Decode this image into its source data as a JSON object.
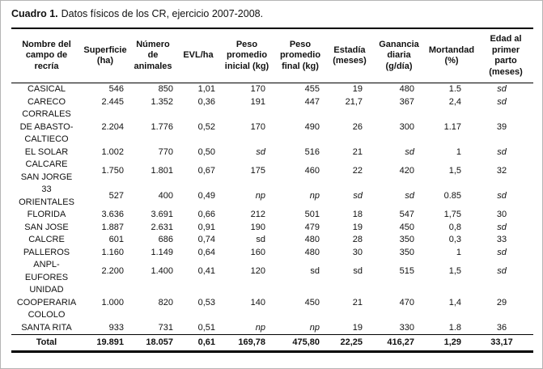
{
  "caption": {
    "label": "Cuadro 1.",
    "text": "Datos físicos de los CR, ejercicio 2007-2008."
  },
  "table": {
    "headers": [
      "Nombre del\ncampo de\nrecría",
      "Superficie\n(ha)",
      "Número\nde\nanimales",
      "EVL/ha",
      "Peso\npromedio\ninicial (kg)",
      "Peso\npromedio\nfinal (kg)",
      "Estadía\n(meses)",
      "Ganancia\ndiaria\n(g/día)",
      "Mortandad\n(%)",
      "Edad al\nprimer\nparto\n(meses)"
    ],
    "rows": [
      {
        "name": "CASICAL",
        "values": [
          "546",
          "850",
          "1,01",
          "170",
          "455",
          "19",
          "480",
          "1.5",
          "sd"
        ],
        "italics": [
          8
        ]
      },
      {
        "name": "CARECO",
        "values": [
          "2.445",
          "1.352",
          "0,36",
          "191",
          "447",
          "21,7",
          "367",
          "2,4",
          "sd"
        ],
        "italics": [
          8
        ]
      },
      {
        "name": "CORRALES\nDE ABASTO-\nCALTIECO",
        "values": [
          "2.204",
          "1.776",
          "0,52",
          "170",
          "490",
          "26",
          "300",
          "1.17",
          "39"
        ],
        "italics": []
      },
      {
        "name": "EL SOLAR",
        "values": [
          "1.002",
          "770",
          "0,50",
          "sd",
          "516",
          "21",
          "sd",
          "1",
          "sd"
        ],
        "italics": [
          3,
          6,
          8
        ]
      },
      {
        "name": "CALCARE\nSAN JORGE",
        "values": [
          "1.750",
          "1.801",
          "0,67",
          "175",
          "460",
          "22",
          "420",
          "1,5",
          "32"
        ],
        "italics": []
      },
      {
        "name": "33\nORIENTALES",
        "values": [
          "527",
          "400",
          "0,49",
          "np",
          "np",
          "sd",
          "sd",
          "0.85",
          "sd"
        ],
        "italics": [
          3,
          4,
          5,
          6,
          8
        ]
      },
      {
        "name": "FLORIDA",
        "values": [
          "3.636",
          "3.691",
          "0,66",
          "212",
          "501",
          "18",
          "547",
          "1,75",
          "30"
        ],
        "italics": []
      },
      {
        "name": "SAN JOSE",
        "values": [
          "1.887",
          "2.631",
          "0,91",
          "190",
          "479",
          "19",
          "450",
          "0,8",
          "sd"
        ],
        "italics": [
          8
        ]
      },
      {
        "name": "CALCRE",
        "values": [
          "601",
          "686",
          "0,74",
          "sd",
          "480",
          "28",
          "350",
          "0,3",
          "33"
        ],
        "italics": []
      },
      {
        "name": "PALLEROS",
        "values": [
          "1.160",
          "1.149",
          "0,64",
          "160",
          "480",
          "30",
          "350",
          "1",
          "sd"
        ],
        "italics": [
          8
        ]
      },
      {
        "name": "ANPL-\nEUFORES",
        "values": [
          "2.200",
          "1.400",
          "0,41",
          "120",
          "sd",
          "sd",
          "515",
          "1,5",
          "sd"
        ],
        "italics": [
          8
        ]
      },
      {
        "name": "UNIDAD\nCOOPERARIA\nCOLOLO",
        "values": [
          "1.000",
          "820",
          "0,53",
          "140",
          "450",
          "21",
          "470",
          "1,4",
          "29"
        ],
        "italics": []
      },
      {
        "name": "SANTA RITA",
        "values": [
          "933",
          "731",
          "0,51",
          "np",
          "np",
          "19",
          "330",
          "1.8",
          "36"
        ],
        "italics": [
          3,
          4
        ]
      }
    ],
    "total": {
      "label": "Total",
      "values": [
        "19.891",
        "18.057",
        "0,61",
        "169,78",
        "475,80",
        "22,25",
        "416,27",
        "1,29",
        "33,17"
      ]
    }
  }
}
